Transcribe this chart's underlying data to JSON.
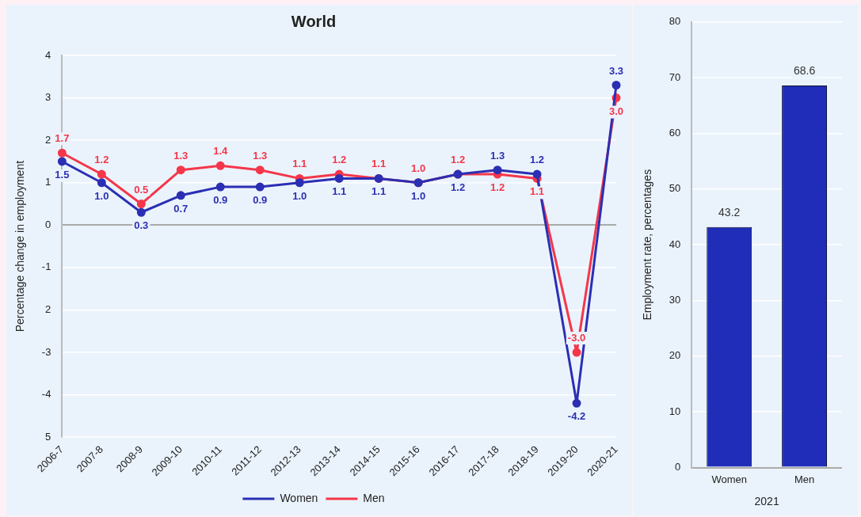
{
  "chart_data": [
    {
      "type": "line",
      "title": "World",
      "ylabel": "Percentage change in employment",
      "categories": [
        "2006-7",
        "2007-8",
        "2008-9",
        "2009-10",
        "2010-11",
        "2011-12",
        "2012-13",
        "2013-14",
        "2014-15",
        "2015-16",
        "2016-17",
        "2017-18",
        "2018-19",
        "2019-20",
        "2020-21"
      ],
      "series": [
        {
          "name": "Women",
          "color": "#2b2fb3",
          "values": [
            1.5,
            1.0,
            0.3,
            0.7,
            0.9,
            0.9,
            1.0,
            1.1,
            1.1,
            1.0,
            1.2,
            1.3,
            1.2,
            -4.2,
            3.3
          ],
          "value_labels": [
            "1.5",
            "1.0",
            "0.3",
            "0.7",
            "0.9",
            "0.9",
            "1.0",
            "1.1",
            "1.1",
            "1.0",
            "1.2",
            "1.3",
            "1.2",
            "-4.2",
            "3.3"
          ]
        },
        {
          "name": "Men",
          "color": "#f5364a",
          "values": [
            1.7,
            1.2,
            0.5,
            1.3,
            1.4,
            1.3,
            1.1,
            1.2,
            1.1,
            1.0,
            1.2,
            1.2,
            1.1,
            -3.0,
            3.0
          ],
          "value_labels": [
            "1.7",
            "1.2",
            "0.5",
            "1.3",
            "1.4",
            "1.3",
            "1.1",
            "1.2",
            "1.1",
            "1.0",
            "1.2",
            "1.2",
            "1.1",
            "-3.0",
            "3.0"
          ]
        }
      ],
      "ylim": [
        -5,
        4
      ],
      "yticks": [
        {
          "value": -5,
          "label": "5"
        },
        -4,
        -3,
        {
          "value": -2,
          "label": "2"
        },
        -1,
        0,
        1,
        2,
        3,
        4
      ],
      "grid": "y",
      "legend": "bottom",
      "marker": "circle"
    },
    {
      "type": "bar",
      "xlabel": "2021",
      "ylabel": "Employment rate, percentages",
      "categories": [
        "Women",
        "Men"
      ],
      "values": [
        43.2,
        68.6
      ],
      "color": "#1f2db8",
      "ylim": [
        0,
        80
      ],
      "yticks": [
        0,
        10,
        20,
        30,
        40,
        50,
        60,
        70,
        80
      ],
      "grid": "y",
      "data_labels": true
    }
  ]
}
